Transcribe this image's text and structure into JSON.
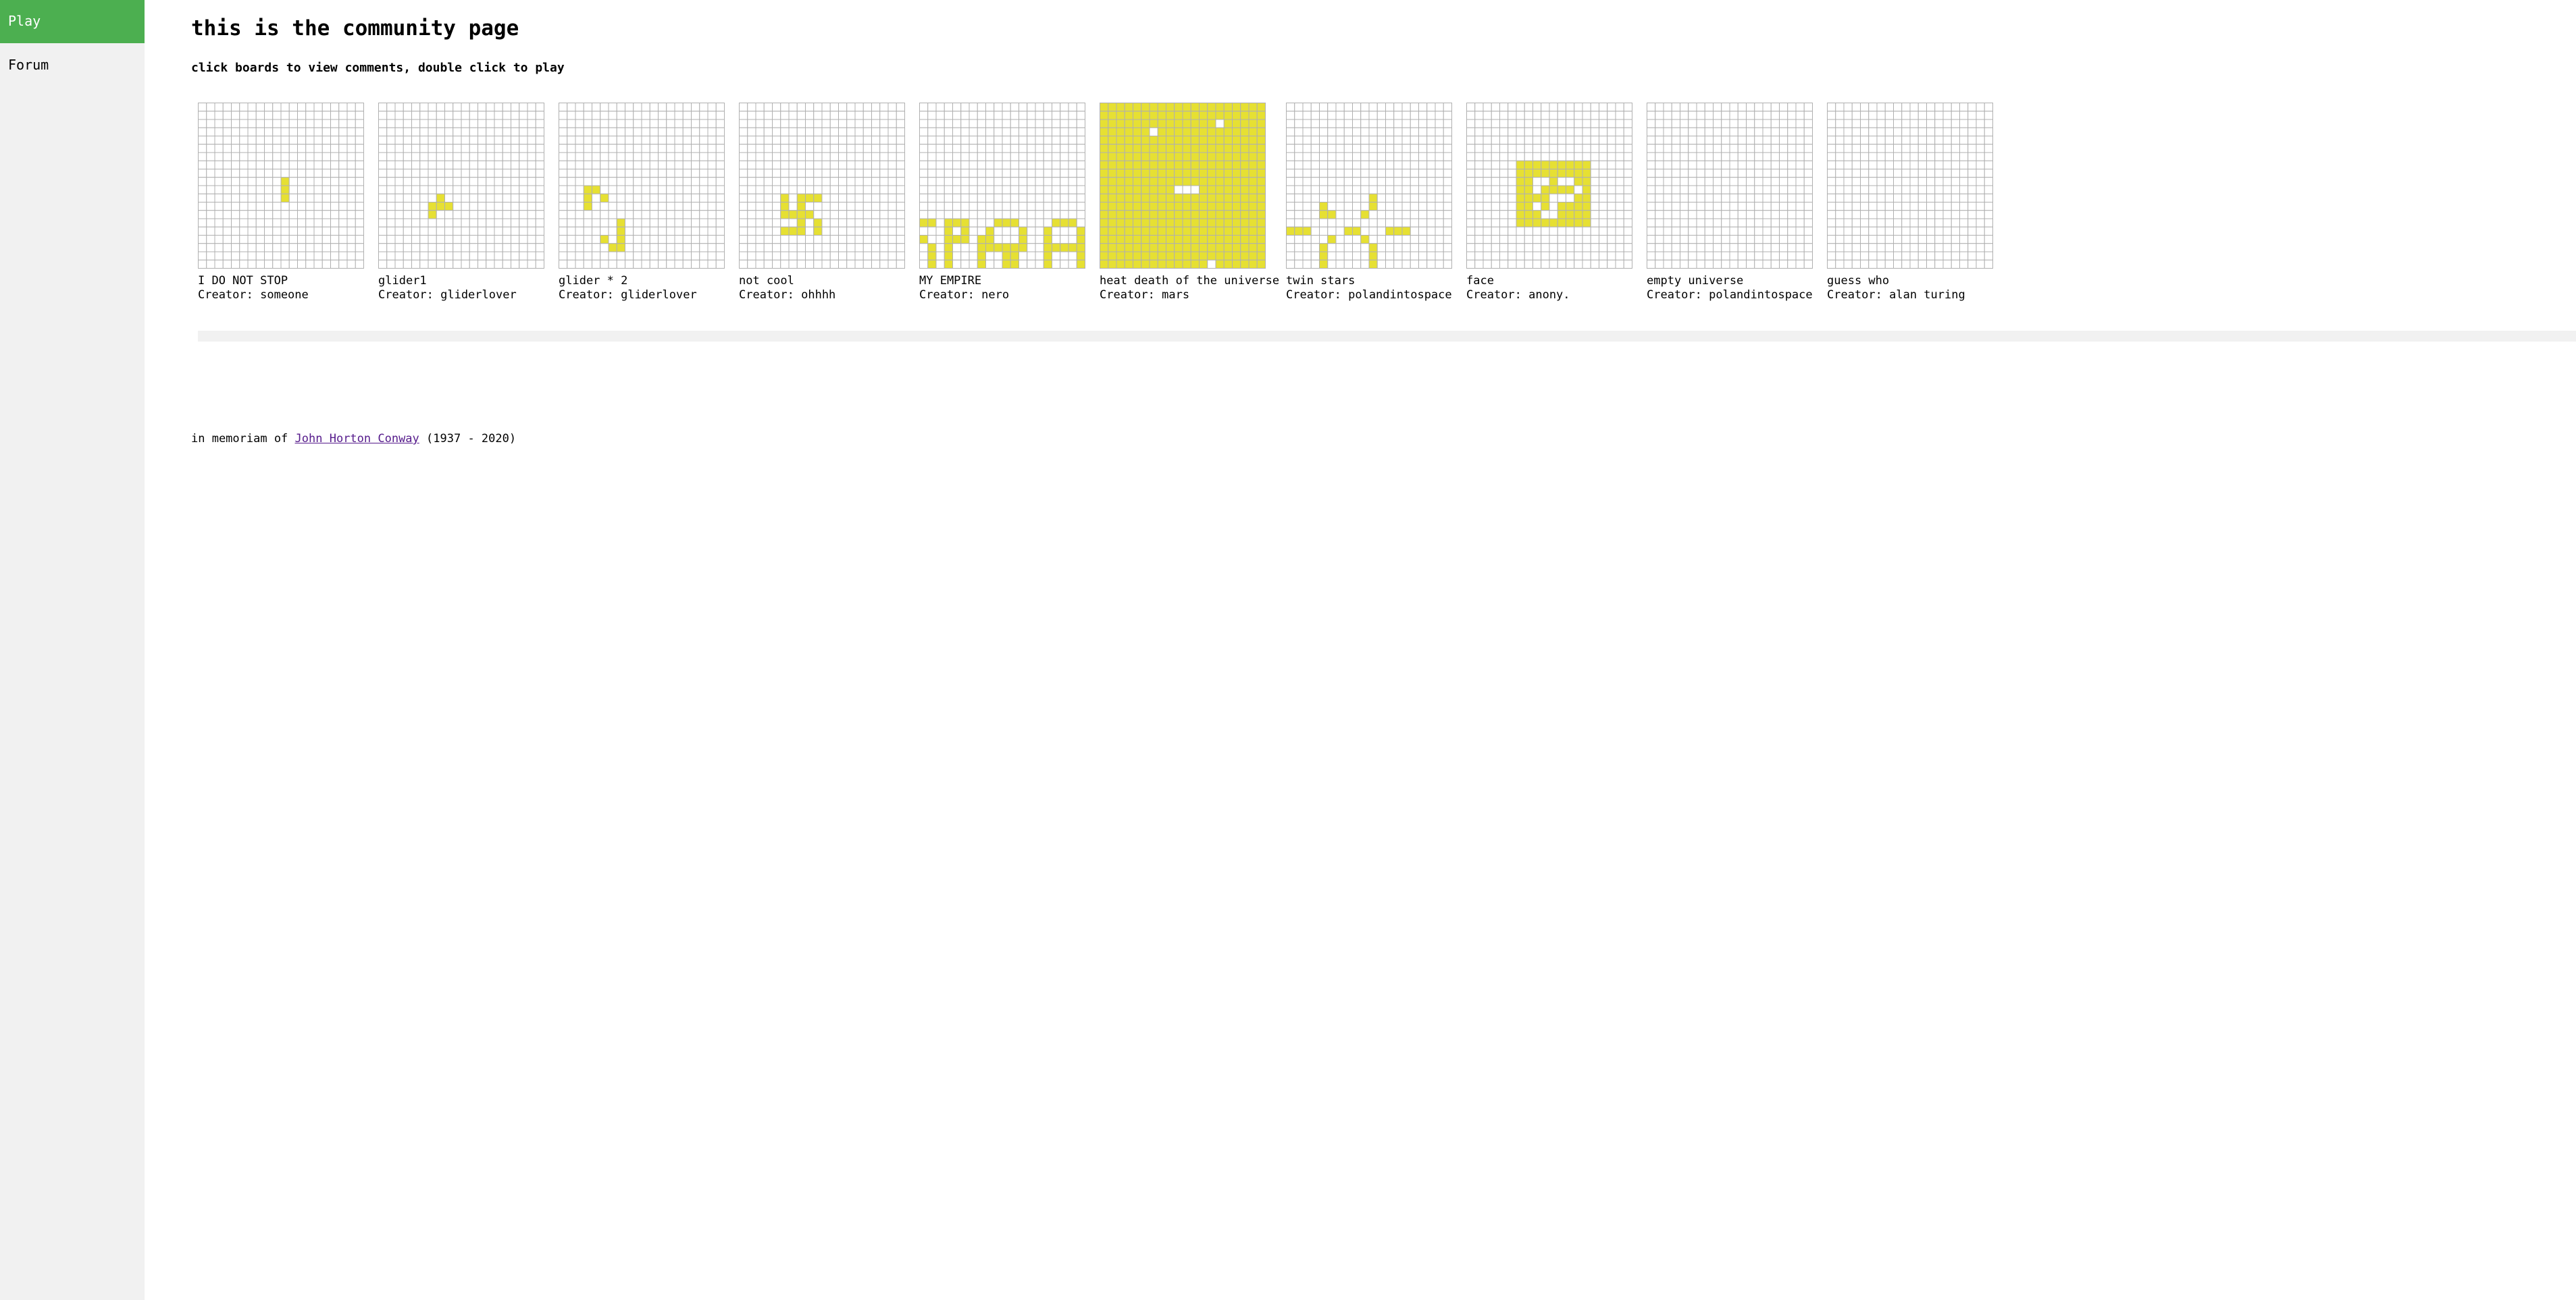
{
  "sidebar": {
    "items": [
      {
        "label": "Play",
        "active": true
      },
      {
        "label": "Forum",
        "active": false
      }
    ]
  },
  "header": {
    "title": "this is the community page",
    "subtitle": "click boards to view comments, double click to play"
  },
  "colors": {
    "cell_alive": "#e6e033",
    "grid_line": "#b0b0b0",
    "nav_active": "#4CAF50"
  },
  "boards": [
    {
      "name": "I DO NOT STOP",
      "creator": "Creator: someone",
      "grid_size": 20,
      "alive": [
        [
          10,
          9
        ],
        [
          10,
          10
        ],
        [
          10,
          11
        ]
      ]
    },
    {
      "name": "glider1",
      "creator": "Creator: gliderlover",
      "grid_size": 20,
      "alive": [
        [
          7,
          11
        ],
        [
          6,
          12
        ],
        [
          7,
          12
        ],
        [
          8,
          12
        ],
        [
          6,
          13
        ]
      ]
    },
    {
      "name": "glider * 2",
      "creator": "Creator: gliderlover",
      "grid_size": 20,
      "alive": [
        [
          3,
          10
        ],
        [
          4,
          10
        ],
        [
          3,
          11
        ],
        [
          5,
          11
        ],
        [
          3,
          12
        ],
        [
          7,
          14
        ],
        [
          7,
          15
        ],
        [
          5,
          16
        ],
        [
          7,
          16
        ],
        [
          6,
          17
        ],
        [
          7,
          17
        ]
      ]
    },
    {
      "name": "not cool",
      "creator": "Creator: ohhhh",
      "grid_size": 20,
      "alive": [
        [
          5,
          11
        ],
        [
          7,
          11
        ],
        [
          8,
          11
        ],
        [
          9,
          11
        ],
        [
          5,
          12
        ],
        [
          7,
          12
        ],
        [
          5,
          13
        ],
        [
          6,
          13
        ],
        [
          7,
          13
        ],
        [
          8,
          13
        ],
        [
          7,
          14
        ],
        [
          9,
          14
        ],
        [
          5,
          15
        ],
        [
          6,
          15
        ],
        [
          7,
          15
        ],
        [
          9,
          15
        ]
      ]
    },
    {
      "name": "MY EMPIRE",
      "creator": "Creator: nero",
      "grid_size": 20,
      "alive": [
        [
          0,
          14
        ],
        [
          1,
          14
        ],
        [
          3,
          14
        ],
        [
          4,
          14
        ],
        [
          5,
          14
        ],
        [
          9,
          14
        ],
        [
          10,
          14
        ],
        [
          11,
          14
        ],
        [
          16,
          14
        ],
        [
          17,
          14
        ],
        [
          18,
          14
        ],
        [
          3,
          15
        ],
        [
          5,
          15
        ],
        [
          8,
          15
        ],
        [
          12,
          15
        ],
        [
          15,
          15
        ],
        [
          19,
          15
        ],
        [
          0,
          16
        ],
        [
          3,
          16
        ],
        [
          4,
          16
        ],
        [
          5,
          16
        ],
        [
          7,
          16
        ],
        [
          8,
          16
        ],
        [
          12,
          16
        ],
        [
          15,
          16
        ],
        [
          19,
          16
        ],
        [
          1,
          17
        ],
        [
          3,
          17
        ],
        [
          7,
          17
        ],
        [
          8,
          17
        ],
        [
          9,
          17
        ],
        [
          10,
          17
        ],
        [
          11,
          17
        ],
        [
          12,
          17
        ],
        [
          15,
          17
        ],
        [
          16,
          17
        ],
        [
          17,
          17
        ],
        [
          18,
          17
        ],
        [
          19,
          17
        ],
        [
          1,
          18
        ],
        [
          3,
          18
        ],
        [
          7,
          18
        ],
        [
          10,
          18
        ],
        [
          11,
          18
        ],
        [
          15,
          18
        ],
        [
          19,
          18
        ],
        [
          1,
          19
        ],
        [
          3,
          19
        ],
        [
          7,
          19
        ],
        [
          10,
          19
        ],
        [
          11,
          19
        ],
        [
          15,
          19
        ],
        [
          19,
          19
        ]
      ]
    },
    {
      "name": "heat death of the universe",
      "creator": "Creator: mars",
      "grid_size": 20,
      "fill_all": true,
      "dead": [
        [
          14,
          2
        ],
        [
          6,
          3
        ],
        [
          9,
          10
        ],
        [
          10,
          10
        ],
        [
          11,
          10
        ],
        [
          13,
          19
        ]
      ]
    },
    {
      "name": "twin stars",
      "creator": "Creator: polandintospace",
      "grid_size": 20,
      "alive": [
        [
          10,
          11
        ],
        [
          4,
          12
        ],
        [
          10,
          12
        ],
        [
          4,
          13
        ],
        [
          5,
          13
        ],
        [
          9,
          13
        ],
        [
          0,
          15
        ],
        [
          1,
          15
        ],
        [
          2,
          15
        ],
        [
          7,
          15
        ],
        [
          8,
          15
        ],
        [
          12,
          15
        ],
        [
          13,
          15
        ],
        [
          14,
          15
        ],
        [
          5,
          16
        ],
        [
          9,
          16
        ],
        [
          4,
          17
        ],
        [
          10,
          17
        ],
        [
          4,
          18
        ],
        [
          10,
          18
        ],
        [
          4,
          19
        ],
        [
          10,
          19
        ]
      ]
    },
    {
      "name": "face",
      "creator": "Creator: anony.",
      "grid_size": 20,
      "alive_rect": [
        6,
        7,
        14,
        14
      ],
      "dead": [
        [
          8,
          9
        ],
        [
          9,
          9
        ],
        [
          11,
          9
        ],
        [
          12,
          9
        ],
        [
          8,
          10
        ],
        [
          13,
          10
        ],
        [
          10,
          11
        ],
        [
          11,
          11
        ],
        [
          12,
          11
        ],
        [
          8,
          12
        ],
        [
          10,
          12
        ],
        [
          9,
          13
        ],
        [
          10,
          13
        ]
      ]
    },
    {
      "name": "empty universe",
      "creator": "Creator: polandintospace",
      "grid_size": 20,
      "alive": []
    },
    {
      "name": "guess who",
      "creator": "Creator: alan turing",
      "grid_size": 20,
      "alive": []
    }
  ],
  "footer": {
    "prefix": "in memoriam of",
    "link_text": "John Horton Conway",
    "suffix": "(1937 - 2020)"
  }
}
